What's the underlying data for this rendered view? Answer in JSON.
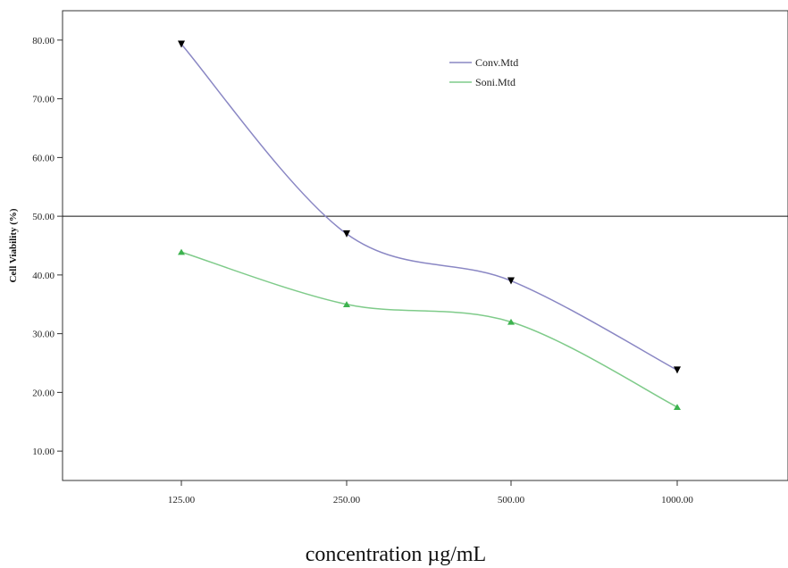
{
  "chart_data": {
    "type": "line",
    "title": "",
    "xlabel": "concentration µg/mL",
    "ylabel": "Cell Viability (%)",
    "categories": [
      "125.00",
      "250.00",
      "500.00",
      "1000.00"
    ],
    "ylim": [
      5,
      85
    ],
    "yticks": [
      "10.00",
      "20.00",
      "30.00",
      "40.00",
      "50.00",
      "60.00",
      "70.00",
      "80.00"
    ],
    "reference_line": 50,
    "grid": false,
    "legend_position": "top-right",
    "series": [
      {
        "name": "Conv.Mtd",
        "values": [
          79.3,
          47.0,
          39.0,
          23.8
        ],
        "color": "#8a87c4",
        "marker": "triangle-down",
        "marker_color": "#000000"
      },
      {
        "name": "Soni.Mtd",
        "values": [
          43.9,
          35.0,
          32.0,
          17.5
        ],
        "color": "#7fcb8a",
        "marker": "triangle-up",
        "marker_color": "#3db34f"
      }
    ]
  }
}
